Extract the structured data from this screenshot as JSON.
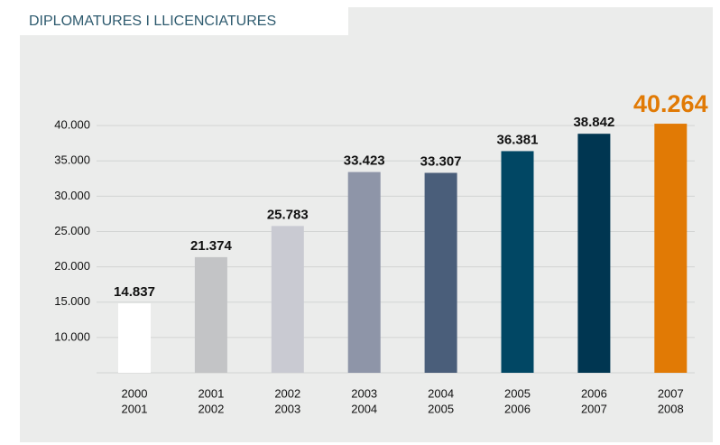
{
  "chart_data": {
    "type": "bar",
    "title": "DIPLOMATURES I LLICENCIATURES",
    "categories": [
      [
        "2000",
        "2001"
      ],
      [
        "2001",
        "2002"
      ],
      [
        "2002",
        "2003"
      ],
      [
        "2003",
        "2004"
      ],
      [
        "2004",
        "2005"
      ],
      [
        "2005",
        "2006"
      ],
      [
        "2006",
        "2007"
      ],
      [
        "2007",
        "2008"
      ]
    ],
    "values": [
      14837,
      21374,
      25783,
      33423,
      33307,
      36381,
      38842,
      40264
    ],
    "value_labels": [
      "14.837",
      "21.374",
      "25.783",
      "33.423",
      "33.307",
      "36.381",
      "38.842",
      "40.264"
    ],
    "colors": [
      "#ffffff",
      "#c3c4c6",
      "#c9cad2",
      "#8e95a8",
      "#4a5e7a",
      "#014764",
      "#003651",
      "#e17a05"
    ],
    "ylim": [
      5000,
      45000
    ],
    "yticks": [
      {
        "value": 10000,
        "label": "10.000"
      },
      {
        "value": 15000,
        "label": "15.000"
      },
      {
        "value": 20000,
        "label": "20.000"
      },
      {
        "value": 25000,
        "label": "25.000"
      },
      {
        "value": 30000,
        "label": "30.000"
      },
      {
        "value": 35000,
        "label": "35.000"
      },
      {
        "value": 40000,
        "label": "40.000"
      }
    ],
    "grid": true
  }
}
